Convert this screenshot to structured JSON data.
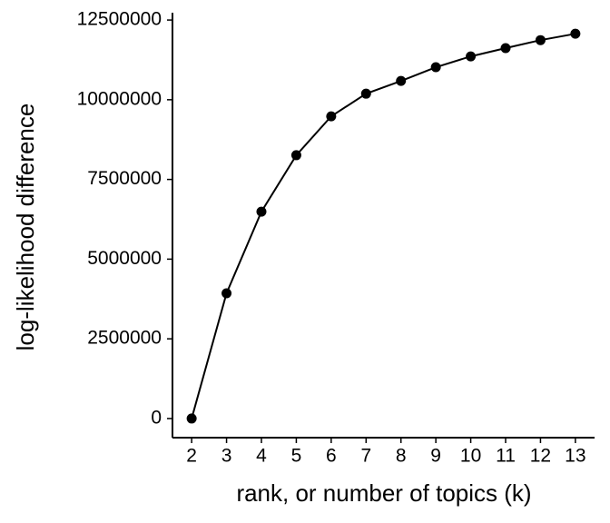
{
  "chart_data": {
    "type": "line",
    "x_label": "rank, or number of topics (k)",
    "y_label": "log-likelihood difference",
    "x": [
      2,
      3,
      4,
      5,
      6,
      7,
      8,
      9,
      10,
      11,
      12,
      13
    ],
    "series": [
      {
        "color": "#000000",
        "values": [
          0,
          3930000,
          6490000,
          8260000,
          9480000,
          10190000,
          10590000,
          11020000,
          11360000,
          11620000,
          11870000,
          12070000
        ]
      }
    ],
    "xlim": [
      1.45,
      13.55
    ],
    "xticks": [
      2,
      3,
      4,
      5,
      6,
      7,
      8,
      9,
      10,
      11,
      12,
      13
    ],
    "ylim": [
      -600000,
      12730000
    ],
    "yticks": [
      0,
      2500000,
      5000000,
      7500000,
      10000000,
      12500000
    ],
    "grid": false
  }
}
